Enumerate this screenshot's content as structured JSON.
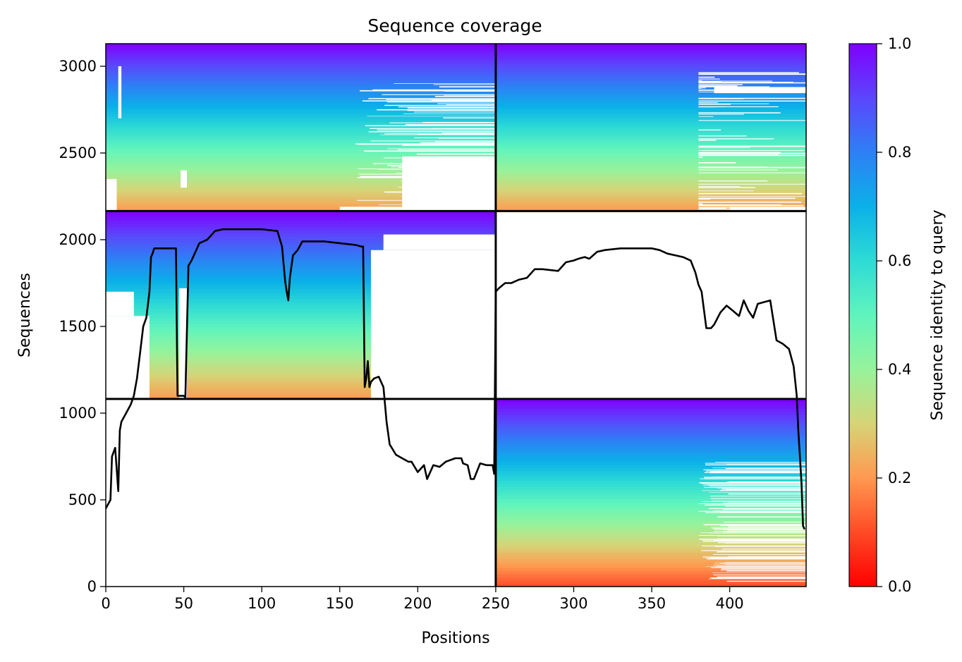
{
  "chart_data": {
    "type": "heatmap",
    "title": "Sequence coverage",
    "xlabel": "Positions",
    "ylabel": "Sequences",
    "xlim": [
      0,
      449
    ],
    "ylim": [
      0,
      3130
    ],
    "xticks": [
      0,
      50,
      100,
      150,
      200,
      250,
      300,
      350,
      400
    ],
    "yticks": [
      0,
      500,
      1000,
      1500,
      2000,
      2500,
      3000
    ],
    "colormap": "rainbow_r",
    "colorbar": {
      "label": "Sequence identity to query",
      "range": [
        0,
        1
      ],
      "ticks": [
        0.0,
        0.2,
        0.4,
        0.6,
        0.8,
        1.0
      ],
      "tick_labels": [
        "0.0",
        "0.2",
        "0.4",
        "0.6",
        "0.8",
        "1.0"
      ]
    },
    "block_boundaries": {
      "x": [
        250
      ],
      "y": [
        1082,
        2165
      ]
    },
    "blocks": [
      {
        "name": "top-left",
        "x": [
          0,
          250
        ],
        "y": [
          2165,
          3130
        ],
        "identity_bottom": 0.2,
        "identity_top": 1.0
      },
      {
        "name": "top-right",
        "x": [
          250,
          449
        ],
        "y": [
          2165,
          3130
        ],
        "identity_bottom": 0.2,
        "identity_top": 1.0
      },
      {
        "name": "middle-left",
        "x": [
          0,
          250
        ],
        "y": [
          1082,
          2165
        ],
        "identity_bottom": 0.2,
        "identity_top": 1.0
      },
      {
        "name": "bottom-right",
        "x": [
          250,
          449
        ],
        "y": [
          0,
          1082
        ],
        "identity_bottom": 0.1,
        "identity_top": 1.0
      }
    ],
    "coverage_line": {
      "x": [
        0,
        3,
        4,
        6,
        8,
        9,
        10,
        13,
        16,
        18,
        20,
        22,
        24,
        26,
        28,
        29,
        30,
        31,
        33,
        36,
        40,
        45,
        46,
        48,
        50,
        51,
        53,
        55,
        60,
        65,
        70,
        75,
        80,
        90,
        100,
        110,
        113,
        115,
        116,
        117,
        118,
        120,
        123,
        126,
        130,
        140,
        150,
        160,
        164,
        165,
        166,
        167,
        168,
        169,
        170,
        172,
        175,
        178,
        180,
        182,
        186,
        190,
        194,
        196,
        200,
        204,
        206,
        210,
        214,
        218,
        224,
        228,
        229,
        232,
        234,
        236,
        240,
        244,
        248,
        249,
        250,
        251,
        252,
        256,
        260,
        265,
        270,
        275,
        280,
        290,
        295,
        300,
        303,
        307,
        310,
        315,
        320,
        330,
        340,
        350,
        355,
        360,
        365,
        370,
        375,
        378,
        380,
        382,
        385,
        388,
        390,
        394,
        398,
        402,
        406,
        409,
        412,
        415,
        418,
        422,
        426,
        430,
        434,
        438,
        441,
        443,
        444,
        446,
        447,
        448
      ],
      "y": [
        450,
        500,
        750,
        800,
        550,
        900,
        950,
        1000,
        1050,
        1100,
        1200,
        1350,
        1500,
        1550,
        1700,
        1900,
        1920,
        1950,
        1950,
        1950,
        1950,
        1950,
        1100,
        1100,
        1100,
        1090,
        1850,
        1880,
        1980,
        2000,
        2050,
        2060,
        2060,
        2060,
        2060,
        2050,
        1960,
        1760,
        1700,
        1650,
        1780,
        1910,
        1940,
        1990,
        1990,
        1990,
        1980,
        1970,
        1960,
        1960,
        1150,
        1200,
        1300,
        1150,
        1180,
        1200,
        1210,
        1150,
        950,
        820,
        760,
        740,
        720,
        720,
        660,
        700,
        620,
        700,
        690,
        720,
        740,
        740,
        710,
        700,
        620,
        620,
        710,
        700,
        700,
        650,
        1700,
        1710,
        1720,
        1750,
        1750,
        1770,
        1780,
        1830,
        1830,
        1820,
        1870,
        1880,
        1890,
        1900,
        1890,
        1930,
        1940,
        1950,
        1950,
        1950,
        1940,
        1920,
        1910,
        1900,
        1880,
        1810,
        1740,
        1700,
        1490,
        1490,
        1510,
        1580,
        1620,
        1590,
        1560,
        1650,
        1590,
        1550,
        1630,
        1640,
        1650,
        1420,
        1400,
        1370,
        1270,
        1100,
        900,
        600,
        350,
        330
      ]
    }
  }
}
